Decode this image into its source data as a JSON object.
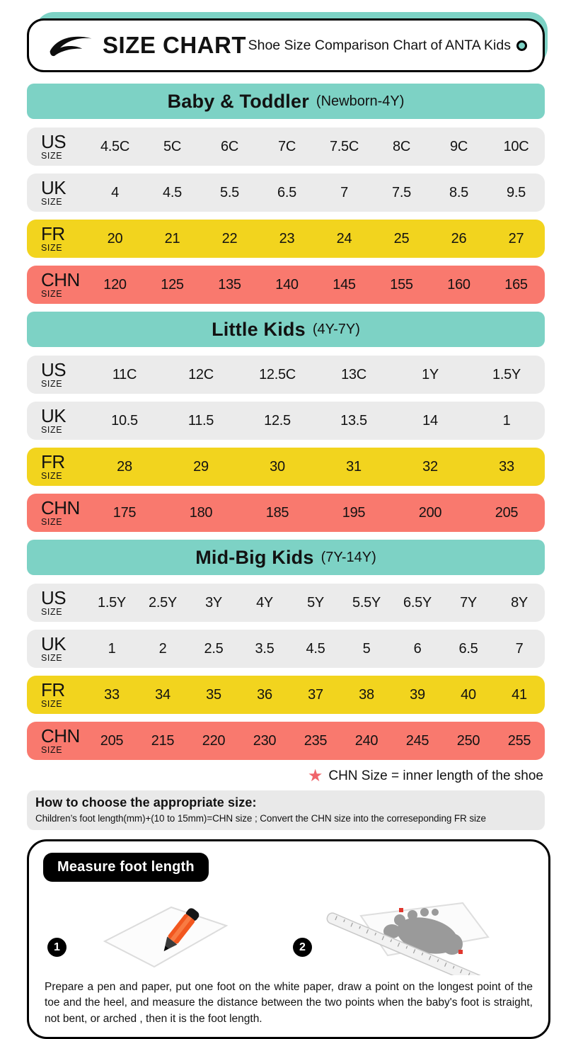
{
  "header": {
    "brand": "SIZE CHART",
    "subtitle": "Shoe Size Comparison Chart of ANTA Kids"
  },
  "colors": {
    "teal": "#7DD2C5",
    "yellow": "#F2D41E",
    "red": "#F9796E",
    "gray": "#EBEBEB",
    "star": "#F0656B",
    "ink": "#121212",
    "pencil": "#F2571F"
  },
  "chart_data": [
    {
      "type": "table",
      "title": "Baby & Toddler",
      "subtitle": "(Newborn-4Y)",
      "rows": [
        {
          "label": "US",
          "sub": "SIZE",
          "style": "gray",
          "values": [
            "4.5C",
            "5C",
            "6C",
            "7C",
            "7.5C",
            "8C",
            "9C",
            "10C"
          ]
        },
        {
          "label": "UK",
          "sub": "SIZE",
          "style": "gray",
          "values": [
            "4",
            "4.5",
            "5.5",
            "6.5",
            "7",
            "7.5",
            "8.5",
            "9.5"
          ]
        },
        {
          "label": "FR",
          "sub": "SIZE",
          "style": "yellow",
          "values": [
            "20",
            "21",
            "22",
            "23",
            "24",
            "25",
            "26",
            "27"
          ]
        },
        {
          "label": "CHN",
          "sub": "SIZE",
          "style": "red",
          "values": [
            "120",
            "125",
            "135",
            "140",
            "145",
            "155",
            "160",
            "165"
          ]
        }
      ]
    },
    {
      "type": "table",
      "title": "Little Kids",
      "subtitle": "(4Y-7Y)",
      "rows": [
        {
          "label": "US",
          "sub": "SIZE",
          "style": "gray",
          "values": [
            "11C",
            "12C",
            "12.5C",
            "13C",
            "1Y",
            "1.5Y"
          ]
        },
        {
          "label": "UK",
          "sub": "SIZE",
          "style": "gray",
          "values": [
            "10.5",
            "11.5",
            "12.5",
            "13.5",
            "14",
            "1"
          ]
        },
        {
          "label": "FR",
          "sub": "SIZE",
          "style": "yellow",
          "values": [
            "28",
            "29",
            "30",
            "31",
            "32",
            "33"
          ]
        },
        {
          "label": "CHN",
          "sub": "SIZE",
          "style": "red",
          "values": [
            "175",
            "180",
            "185",
            "195",
            "200",
            "205"
          ]
        }
      ]
    },
    {
      "type": "table",
      "title": "Mid-Big Kids",
      "subtitle": "(7Y-14Y)",
      "rows": [
        {
          "label": "US",
          "sub": "SIZE",
          "style": "gray",
          "values": [
            "1.5Y",
            "2.5Y",
            "3Y",
            "4Y",
            "5Y",
            "5.5Y",
            "6.5Y",
            "7Y",
            "8Y"
          ]
        },
        {
          "label": "UK",
          "sub": "SIZE",
          "style": "gray",
          "values": [
            "1",
            "2",
            "2.5",
            "3.5",
            "4.5",
            "5",
            "6",
            "6.5",
            "7"
          ]
        },
        {
          "label": "FR",
          "sub": "SIZE",
          "style": "yellow",
          "values": [
            "33",
            "34",
            "35",
            "36",
            "37",
            "38",
            "39",
            "40",
            "41"
          ]
        },
        {
          "label": "CHN",
          "sub": "SIZE",
          "style": "red",
          "values": [
            "205",
            "215",
            "220",
            "230",
            "235",
            "240",
            "245",
            "250",
            "255"
          ]
        }
      ]
    }
  ],
  "note": {
    "star_note": "CHN Size = inner length of the shoe"
  },
  "howto": {
    "title": "How to choose the appropriate size:",
    "body": "Children’s foot length(mm)+(10 to 15mm)=CHN size ; Convert the CHN size into the correseponding FR size"
  },
  "measure": {
    "badge": "Measure foot length",
    "steps": [
      {
        "marker": "1",
        "icon": "pen-paper-illustration"
      },
      {
        "marker": "2",
        "icon": "foot-ruler-illustration"
      }
    ],
    "description": "Prepare a pen and paper, put one foot on the white paper, draw a point on the longest point of the toe and the heel, and measure the distance between the two points when the baby's foot is straight, not bent, or arched , then it is the foot length."
  }
}
